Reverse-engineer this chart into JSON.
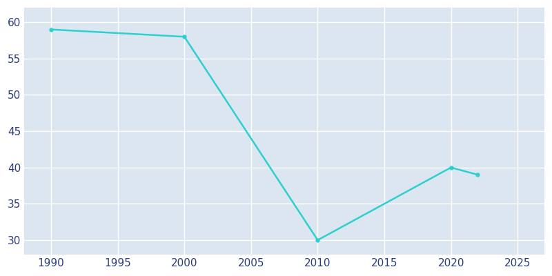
{
  "years": [
    1990,
    2000,
    2010,
    2020,
    2022
  ],
  "population": [
    59,
    58,
    30,
    40,
    39
  ],
  "line_color": "#2ecfcf",
  "marker": "o",
  "marker_size": 3.5,
  "line_width": 1.8,
  "plot_bg_color": "#dce6f0",
  "figure_bg_color": "#ffffff",
  "grid_color": "#ffffff",
  "xlim": [
    1988,
    2027
  ],
  "ylim": [
    28,
    62
  ],
  "xticks": [
    1990,
    1995,
    2000,
    2005,
    2010,
    2015,
    2020,
    2025
  ],
  "yticks": [
    30,
    35,
    40,
    45,
    50,
    55,
    60
  ],
  "tick_color": "#2b3d7a",
  "tick_fontsize": 11,
  "spine_visible": false
}
